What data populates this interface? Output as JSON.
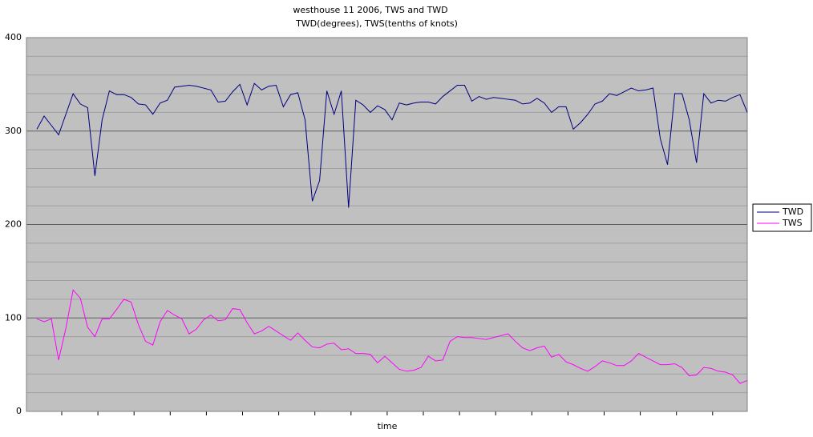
{
  "chart_data": {
    "type": "line",
    "title": "westhouse 11 2006, TWS and TWD",
    "subtitle": "TWD(degrees), TWS(tenths of knots)",
    "x_label": "time",
    "categories": [
      null,
      null,
      null,
      null,
      null,
      null,
      null,
      null,
      null,
      null,
      null,
      null,
      null,
      null,
      null,
      null,
      null,
      null,
      null,
      null,
      null,
      null,
      null,
      null,
      null,
      null,
      null,
      null,
      null,
      null,
      null,
      null,
      null,
      null,
      null,
      null,
      null,
      null,
      null,
      null,
      null,
      null,
      null,
      null,
      null,
      null,
      null,
      null,
      null,
      null,
      null,
      null,
      null,
      null,
      null,
      null,
      null,
      null,
      null,
      null,
      null,
      null,
      null,
      null,
      null,
      null,
      null,
      null,
      null,
      null,
      null,
      null,
      null,
      null,
      null,
      null,
      null,
      null,
      null,
      null,
      null,
      null,
      null,
      null,
      null,
      null,
      null,
      null,
      null,
      null,
      null,
      null,
      null,
      null,
      null,
      null,
      null,
      null,
      null
    ],
    "series": [
      {
        "name": "TWD",
        "color": "#000080",
        "values": [
          302,
          316,
          306,
          296,
          318,
          340,
          329,
          325,
          252,
          312,
          343,
          339,
          339,
          336,
          329,
          328,
          318,
          330,
          333,
          347,
          348,
          349,
          348,
          346,
          344,
          331,
          332,
          342,
          350,
          328,
          351,
          344,
          348,
          349,
          326,
          339,
          341,
          312,
          225,
          247,
          343,
          318,
          343,
          218,
          333,
          328,
          320,
          327,
          323,
          312,
          330,
          328,
          330,
          331,
          331,
          329,
          337,
          343,
          349,
          349,
          332,
          337,
          334,
          336,
          335,
          334,
          333,
          329,
          330,
          335,
          330,
          320,
          326,
          326,
          302,
          309,
          318,
          329,
          332,
          340,
          338,
          342,
          346,
          343,
          344,
          346,
          292,
          264,
          340,
          340,
          312,
          266,
          340,
          330,
          333,
          332,
          336,
          339,
          320
        ]
      },
      {
        "name": "TWS",
        "color": "#ff00ff",
        "values": [
          99,
          96,
          99,
          55,
          89,
          130,
          121,
          90,
          80,
          99,
          99,
          109,
          120,
          117,
          93,
          75,
          71,
          96,
          108,
          103,
          99,
          83,
          88,
          98,
          103,
          97,
          98,
          110,
          109,
          95,
          83,
          86,
          91,
          86,
          81,
          76,
          84,
          76,
          69,
          68,
          72,
          73,
          66,
          67,
          62,
          62,
          61,
          52,
          59,
          52,
          45,
          43,
          44,
          47,
          59,
          54,
          55,
          75,
          80,
          79,
          79,
          78,
          77,
          79,
          81,
          83,
          75,
          68,
          65,
          68,
          70,
          58,
          61,
          53,
          50,
          46,
          43,
          48,
          54,
          52,
          49,
          49,
          54,
          62,
          58,
          54,
          50,
          50,
          51,
          47,
          38,
          39,
          47,
          46,
          43,
          42,
          39,
          30,
          33
        ]
      }
    ],
    "ylim": [
      0,
      400
    ],
    "yticks": [
      0,
      100,
      200,
      300,
      400
    ],
    "grid": true,
    "legend": "right"
  }
}
